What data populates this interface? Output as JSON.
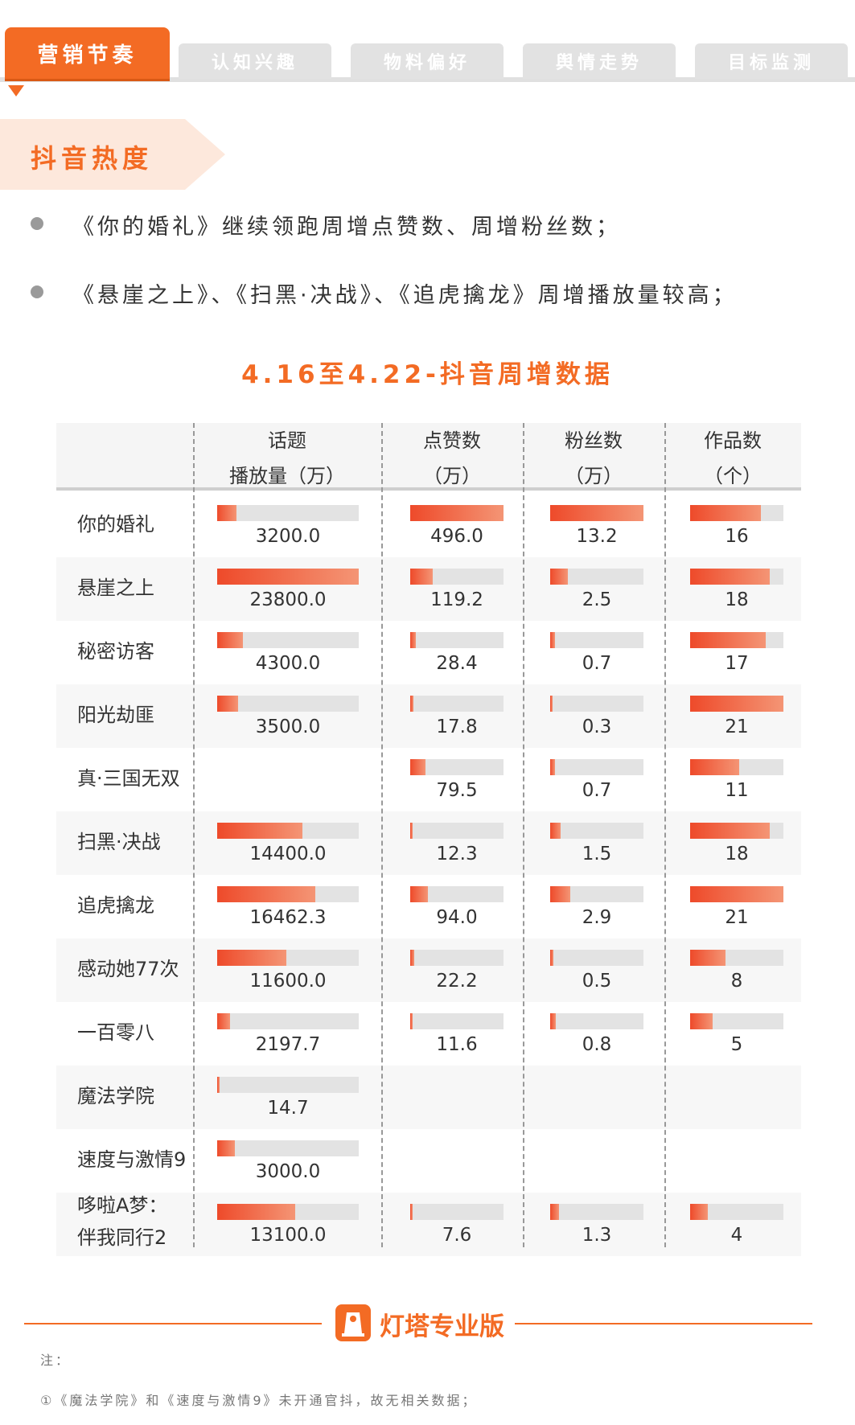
{
  "tabs": [
    {
      "label": "营销节奏",
      "active": true
    },
    {
      "label": "认知兴趣",
      "active": false
    },
    {
      "label": "物料偏好",
      "active": false
    },
    {
      "label": "舆情走势",
      "active": false
    },
    {
      "label": "目标监测",
      "active": false
    }
  ],
  "section_title": "抖音热度",
  "bullets": [
    "《你的婚礼》继续领跑周增点赞数、周增粉丝数；",
    "《悬崖之上》、《扫黑·决战》、《追虎擒龙》周增播放量较高；"
  ],
  "table_title": "4.16至4.22-抖音周增数据",
  "columns": [
    {
      "line1": "话题",
      "line2": "播放量（万）"
    },
    {
      "line1": "点赞数",
      "line2": "（万）"
    },
    {
      "line1": "粉丝数",
      "line2": "（万）"
    },
    {
      "line1": "作品数",
      "line2": "（个）"
    }
  ],
  "rows": [
    {
      "name": "你的婚礼",
      "views": "3200.0",
      "likes": "496.0",
      "fans": "13.2",
      "works": "16"
    },
    {
      "name": "悬崖之上",
      "views": "23800.0",
      "likes": "119.2",
      "fans": "2.5",
      "works": "18"
    },
    {
      "name": "秘密访客",
      "views": "4300.0",
      "likes": "28.4",
      "fans": "0.7",
      "works": "17"
    },
    {
      "name": "阳光劫匪",
      "views": "3500.0",
      "likes": "17.8",
      "fans": "0.3",
      "works": "21"
    },
    {
      "name": "真·三国无双",
      "views": null,
      "likes": "79.5",
      "fans": "0.7",
      "works": "11"
    },
    {
      "name": "扫黑·决战",
      "views": "14400.0",
      "likes": "12.3",
      "fans": "1.5",
      "works": "18"
    },
    {
      "name": "追虎擒龙",
      "views": "16462.3",
      "likes": "94.0",
      "fans": "2.9",
      "works": "21"
    },
    {
      "name": "感动她77次",
      "views": "11600.0",
      "likes": "22.2",
      "fans": "0.5",
      "works": "8"
    },
    {
      "name": "一百零八",
      "views": "2197.7",
      "likes": "11.6",
      "fans": "0.8",
      "works": "5"
    },
    {
      "name": "魔法学院",
      "views": "14.7",
      "likes": null,
      "fans": null,
      "works": null
    },
    {
      "name": "速度与激情9",
      "views": "3000.0",
      "likes": null,
      "fans": null,
      "works": null
    },
    {
      "name": "哆啦A梦：伴我同行2",
      "name_line1": "哆啦A梦：",
      "name_line2": "伴我同行2",
      "views": "13100.0",
      "likes": "7.6",
      "fans": "1.3",
      "works": "4"
    }
  ],
  "footer": {
    "logo_text": "灯塔专业版",
    "note_label": "注：",
    "note_1": "①《魔法学院》和《速度与激情9》未开通官抖，故无相关数据；"
  },
  "colors": {
    "accent": "#f36b24",
    "bar_start": "#ee4a2a",
    "bar_end": "#f49575",
    "track": "#e3e3e3"
  }
}
